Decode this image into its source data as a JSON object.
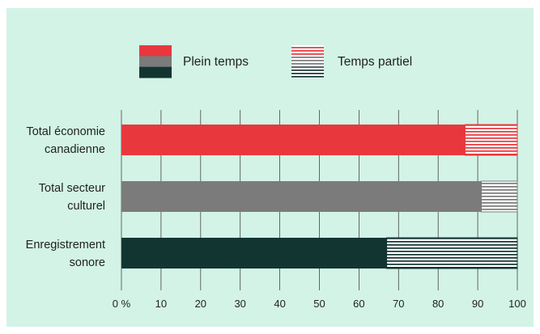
{
  "chart_data": {
    "type": "bar",
    "orientation": "horizontal",
    "stacked": true,
    "categories": [
      "Total économie canadienne",
      "Total secteur culturel",
      "Enregistrement sonore"
    ],
    "category_lines": [
      [
        "Total économie",
        "canadienne"
      ],
      [
        "Total secteur",
        "culturel"
      ],
      [
        "Enregistrement",
        "sonore"
      ]
    ],
    "series": [
      {
        "name": "Plein temps",
        "values": [
          86.8,
          90.9,
          67.0
        ]
      },
      {
        "name": "Temps partiel",
        "values": [
          13.2,
          9.1,
          33.0
        ]
      }
    ],
    "category_colors": [
      "#e8383d",
      "#7b7b7b",
      "#133532"
    ],
    "xlim": [
      0,
      100
    ],
    "xticks": [
      0,
      10,
      20,
      30,
      40,
      50,
      60,
      70,
      80,
      90,
      100
    ],
    "xtick_labels": [
      "0 %",
      "10",
      "20",
      "30",
      "40",
      "50",
      "60",
      "70",
      "80",
      "90",
      "100"
    ],
    "legend": {
      "position": "top",
      "full_time_label": "Plein temps",
      "part_time_label": "Temps partiel"
    },
    "grid": "vertical"
  }
}
